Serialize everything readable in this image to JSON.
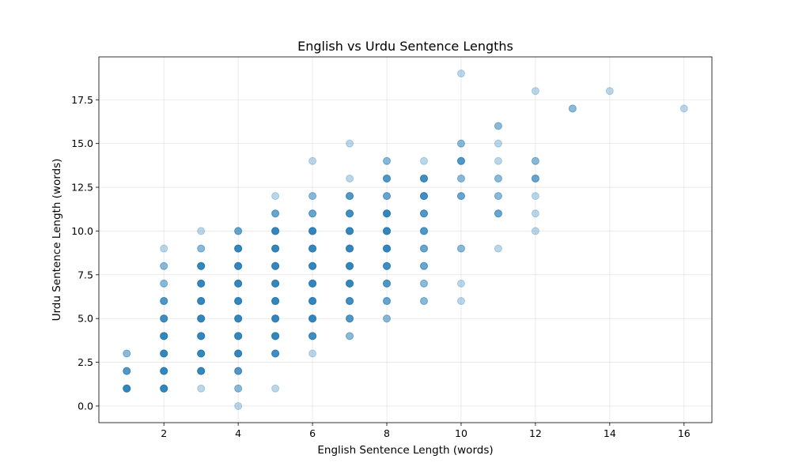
{
  "chart_data": {
    "type": "scatter",
    "title": "English vs Urdu Sentence Lengths",
    "xlabel": "English Sentence Length (words)",
    "ylabel": "Urdu Sentence Length (words)",
    "xlim": [
      0.25,
      16.75
    ],
    "ylim": [
      -0.95,
      19.95
    ],
    "xticks": [
      2,
      4,
      6,
      8,
      10,
      12,
      14,
      16
    ],
    "xtick_labels": [
      "2",
      "4",
      "6",
      "8",
      "10",
      "12",
      "14",
      "16"
    ],
    "yticks": [
      0,
      2.5,
      5,
      7.5,
      10,
      12.5,
      15,
      17.5
    ],
    "ytick_labels": [
      "0.0",
      "2.5",
      "5.0",
      "7.5",
      "10.0",
      "12.5",
      "15.0",
      "17.5"
    ],
    "grid": true,
    "color": "#1f77b4",
    "alpha": 0.3,
    "points": [
      {
        "x": 1,
        "y": 1,
        "n": 6
      },
      {
        "x": 1,
        "y": 2,
        "n": 4
      },
      {
        "x": 1,
        "y": 3,
        "n": 2
      },
      {
        "x": 2,
        "y": 1,
        "n": 6
      },
      {
        "x": 2,
        "y": 2,
        "n": 6
      },
      {
        "x": 2,
        "y": 3,
        "n": 6
      },
      {
        "x": 2,
        "y": 4,
        "n": 6
      },
      {
        "x": 2,
        "y": 5,
        "n": 5
      },
      {
        "x": 2,
        "y": 6,
        "n": 4
      },
      {
        "x": 2,
        "y": 7,
        "n": 2
      },
      {
        "x": 2,
        "y": 8,
        "n": 2
      },
      {
        "x": 2,
        "y": 9,
        "n": 1
      },
      {
        "x": 3,
        "y": 1,
        "n": 1
      },
      {
        "x": 3,
        "y": 2,
        "n": 6
      },
      {
        "x": 3,
        "y": 3,
        "n": 6
      },
      {
        "x": 3,
        "y": 4,
        "n": 6
      },
      {
        "x": 3,
        "y": 5,
        "n": 6
      },
      {
        "x": 3,
        "y": 6,
        "n": 6
      },
      {
        "x": 3,
        "y": 7,
        "n": 6
      },
      {
        "x": 3,
        "y": 8,
        "n": 6
      },
      {
        "x": 3,
        "y": 9,
        "n": 2
      },
      {
        "x": 3,
        "y": 10,
        "n": 1
      },
      {
        "x": 4,
        "y": 0,
        "n": 1
      },
      {
        "x": 4,
        "y": 1,
        "n": 2
      },
      {
        "x": 4,
        "y": 2,
        "n": 4
      },
      {
        "x": 4,
        "y": 3,
        "n": 6
      },
      {
        "x": 4,
        "y": 4,
        "n": 6
      },
      {
        "x": 4,
        "y": 5,
        "n": 6
      },
      {
        "x": 4,
        "y": 6,
        "n": 6
      },
      {
        "x": 4,
        "y": 7,
        "n": 6
      },
      {
        "x": 4,
        "y": 8,
        "n": 6
      },
      {
        "x": 4,
        "y": 9,
        "n": 6
      },
      {
        "x": 4,
        "y": 10,
        "n": 3
      },
      {
        "x": 5,
        "y": 1,
        "n": 1
      },
      {
        "x": 5,
        "y": 3,
        "n": 5
      },
      {
        "x": 5,
        "y": 4,
        "n": 6
      },
      {
        "x": 5,
        "y": 5,
        "n": 6
      },
      {
        "x": 5,
        "y": 6,
        "n": 6
      },
      {
        "x": 5,
        "y": 7,
        "n": 6
      },
      {
        "x": 5,
        "y": 8,
        "n": 6
      },
      {
        "x": 5,
        "y": 9,
        "n": 6
      },
      {
        "x": 5,
        "y": 10,
        "n": 6
      },
      {
        "x": 5,
        "y": 11,
        "n": 3
      },
      {
        "x": 5,
        "y": 12,
        "n": 1
      },
      {
        "x": 6,
        "y": 3,
        "n": 1
      },
      {
        "x": 6,
        "y": 4,
        "n": 5
      },
      {
        "x": 6,
        "y": 5,
        "n": 6
      },
      {
        "x": 6,
        "y": 6,
        "n": 6
      },
      {
        "x": 6,
        "y": 7,
        "n": 6
      },
      {
        "x": 6,
        "y": 8,
        "n": 6
      },
      {
        "x": 6,
        "y": 9,
        "n": 6
      },
      {
        "x": 6,
        "y": 10,
        "n": 6
      },
      {
        "x": 6,
        "y": 11,
        "n": 3
      },
      {
        "x": 6,
        "y": 12,
        "n": 2
      },
      {
        "x": 6,
        "y": 14,
        "n": 1
      },
      {
        "x": 7,
        "y": 4,
        "n": 2
      },
      {
        "x": 7,
        "y": 5,
        "n": 4
      },
      {
        "x": 7,
        "y": 6,
        "n": 5
      },
      {
        "x": 7,
        "y": 7,
        "n": 6
      },
      {
        "x": 7,
        "y": 8,
        "n": 6
      },
      {
        "x": 7,
        "y": 9,
        "n": 6
      },
      {
        "x": 7,
        "y": 10,
        "n": 6
      },
      {
        "x": 7,
        "y": 11,
        "n": 5
      },
      {
        "x": 7,
        "y": 12,
        "n": 4
      },
      {
        "x": 7,
        "y": 13,
        "n": 1
      },
      {
        "x": 7,
        "y": 15,
        "n": 1
      },
      {
        "x": 8,
        "y": 5,
        "n": 2
      },
      {
        "x": 8,
        "y": 6,
        "n": 3
      },
      {
        "x": 8,
        "y": 7,
        "n": 4
      },
      {
        "x": 8,
        "y": 8,
        "n": 5
      },
      {
        "x": 8,
        "y": 9,
        "n": 6
      },
      {
        "x": 8,
        "y": 10,
        "n": 6
      },
      {
        "x": 8,
        "y": 11,
        "n": 6
      },
      {
        "x": 8,
        "y": 12,
        "n": 3
      },
      {
        "x": 8,
        "y": 13,
        "n": 4
      },
      {
        "x": 8,
        "y": 14,
        "n": 2
      },
      {
        "x": 9,
        "y": 6,
        "n": 2
      },
      {
        "x": 9,
        "y": 7,
        "n": 2
      },
      {
        "x": 9,
        "y": 8,
        "n": 3
      },
      {
        "x": 9,
        "y": 9,
        "n": 3
      },
      {
        "x": 9,
        "y": 10,
        "n": 4
      },
      {
        "x": 9,
        "y": 11,
        "n": 4
      },
      {
        "x": 9,
        "y": 12,
        "n": 5
      },
      {
        "x": 9,
        "y": 13,
        "n": 5
      },
      {
        "x": 9,
        "y": 14,
        "n": 1
      },
      {
        "x": 10,
        "y": 6,
        "n": 1
      },
      {
        "x": 10,
        "y": 7,
        "n": 1
      },
      {
        "x": 10,
        "y": 9,
        "n": 2
      },
      {
        "x": 10,
        "y": 12,
        "n": 3
      },
      {
        "x": 10,
        "y": 13,
        "n": 2
      },
      {
        "x": 10,
        "y": 14,
        "n": 4
      },
      {
        "x": 10,
        "y": 15,
        "n": 2
      },
      {
        "x": 10,
        "y": 19,
        "n": 1
      },
      {
        "x": 11,
        "y": 9,
        "n": 1
      },
      {
        "x": 11,
        "y": 11,
        "n": 3
      },
      {
        "x": 11,
        "y": 12,
        "n": 2
      },
      {
        "x": 11,
        "y": 13,
        "n": 2
      },
      {
        "x": 11,
        "y": 14,
        "n": 1
      },
      {
        "x": 11,
        "y": 15,
        "n": 1
      },
      {
        "x": 11,
        "y": 16,
        "n": 2
      },
      {
        "x": 12,
        "y": 10,
        "n": 1
      },
      {
        "x": 12,
        "y": 11,
        "n": 1
      },
      {
        "x": 12,
        "y": 12,
        "n": 1
      },
      {
        "x": 12,
        "y": 13,
        "n": 3
      },
      {
        "x": 12,
        "y": 14,
        "n": 2
      },
      {
        "x": 12,
        "y": 18,
        "n": 1
      },
      {
        "x": 13,
        "y": 17,
        "n": 2
      },
      {
        "x": 14,
        "y": 18,
        "n": 1
      },
      {
        "x": 16,
        "y": 17,
        "n": 1
      }
    ]
  }
}
